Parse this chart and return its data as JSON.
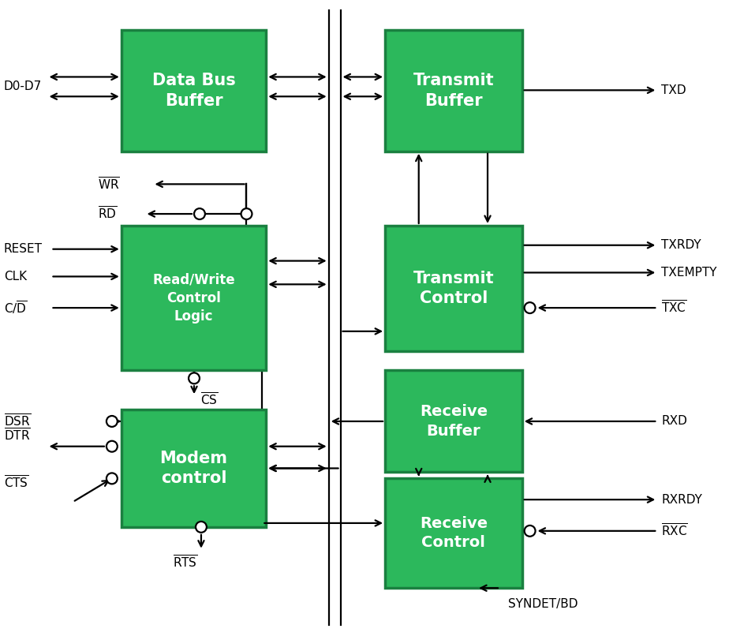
{
  "bg": "#ffffff",
  "green": "#2cb85c",
  "green_edge": "#1a8040",
  "black": "#000000",
  "white": "#ffffff",
  "lw": 1.6,
  "block_labels": {
    "DBB": "Data Bus\nBuffer",
    "RWC": "Read/Write\nControl\nLogic",
    "MDM": "Modem\ncontrol",
    "TXB": "Transmit\nBuffer",
    "TXC": "Transmit\nControl",
    "RXB": "Receive\nBuffer",
    "RXC": "Receive\nControl"
  },
  "block_fs": {
    "DBB": 15,
    "RWC": 12,
    "MDM": 15,
    "TXB": 15,
    "TXC": 15,
    "RXB": 14,
    "RXC": 14
  },
  "label_fs": 11
}
